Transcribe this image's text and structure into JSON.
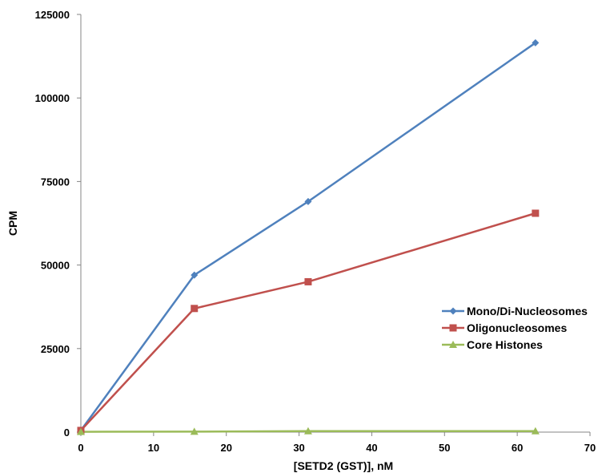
{
  "chart_data": {
    "type": "line",
    "title": "",
    "xlabel": "[SETD2 (GST)], nM",
    "ylabel": "CPM",
    "xlim": [
      0,
      70
    ],
    "ylim": [
      0,
      125000
    ],
    "xticks": [
      0,
      10,
      20,
      30,
      40,
      50,
      60,
      70
    ],
    "yticks": [
      0,
      25000,
      50000,
      75000,
      100000,
      125000
    ],
    "xtick_labels": [
      "0",
      "10",
      "20",
      "30",
      "40",
      "50",
      "60",
      "70"
    ],
    "ytick_labels": [
      "0",
      "25000",
      "50000",
      "75000",
      "100000",
      "125000"
    ],
    "grid": false,
    "legend_position": "right",
    "series": [
      {
        "name": "Mono/Di-Nucleosomes",
        "color": "#4F81BD",
        "marker": "diamond",
        "x": [
          0,
          15.6,
          31.25,
          62.5
        ],
        "y": [
          500,
          47000,
          69000,
          116500
        ]
      },
      {
        "name": "Oligonucleosomes",
        "color": "#C0504D",
        "marker": "square",
        "x": [
          0,
          15.6,
          31.25,
          62.5
        ],
        "y": [
          500,
          37000,
          45000,
          65500
        ]
      },
      {
        "name": "Core Histones",
        "color": "#9BBB59",
        "marker": "triangle",
        "x": [
          0,
          15.6,
          31.25,
          62.5
        ],
        "y": [
          100,
          150,
          300,
          300
        ]
      }
    ]
  }
}
